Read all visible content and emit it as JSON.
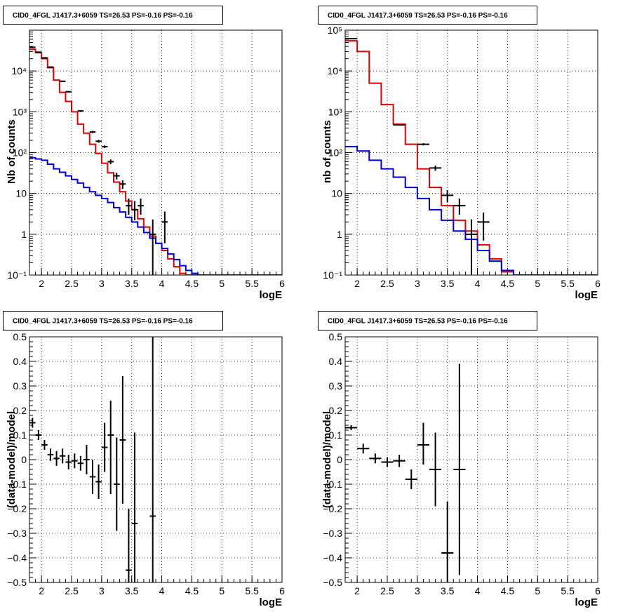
{
  "colors": {
    "data": "#000000",
    "total_model": "#e00000",
    "source_model": "#0000dd",
    "frame": "#000000",
    "grid": "#000000"
  },
  "chart_data": [
    {
      "type": "line",
      "title": "CID0_4FGL J1417.3+6059 TS=26.53 PS=-0.16 PS=-0.16",
      "xlabel": "logE",
      "ylabel": "Nb of counts",
      "xlim": [
        1.8,
        6
      ],
      "ylim": [
        0.1,
        100000
      ],
      "yscale": "log",
      "grid": true,
      "x_ticks": [
        "2",
        "2.5",
        "3",
        "3.5",
        "4",
        "4.5",
        "5",
        "5.5",
        "6"
      ],
      "y_ticks": [
        "10⁻¹",
        "1",
        "10",
        "10²",
        "10³",
        "10⁴"
      ],
      "bin_edges": [
        1.8,
        1.9,
        2.0,
        2.1,
        2.2,
        2.3,
        2.4,
        2.5,
        2.6,
        2.7,
        2.8,
        2.9,
        3.0,
        3.1,
        3.2,
        3.3,
        3.4,
        3.5,
        3.6,
        3.7,
        3.8,
        3.9,
        4.0,
        4.1,
        4.2,
        4.3,
        4.4,
        4.5,
        4.6,
        4.7,
        4.8,
        4.9,
        5.0,
        5.1,
        5.2,
        5.3,
        5.4,
        5.5,
        5.6,
        5.7,
        5.8,
        5.9,
        6.0
      ],
      "series": [
        {
          "role": "total_model",
          "style": "step",
          "values": [
            34000,
            28000,
            20000,
            12000,
            6000,
            3000,
            1800,
            1000,
            500,
            300,
            160,
            95,
            55,
            32,
            19,
            11,
            6.5,
            4,
            2.4,
            1.5,
            0.9,
            0.6,
            0.4,
            0.25,
            0.16,
            0.11,
            0.1,
            0.1,
            0.1,
            0.1,
            0.1,
            0.1,
            0.1,
            0.1,
            0.1,
            0.1,
            0.1,
            0.1,
            0.1,
            0.1,
            0.1,
            0.1
          ]
        },
        {
          "role": "source_model",
          "style": "step",
          "values": [
            75,
            70,
            65,
            52,
            40,
            33,
            27,
            22,
            18,
            14,
            11,
            9,
            7.5,
            6,
            4.5,
            3.5,
            2.6,
            2,
            1.5,
            1.1,
            0.8,
            0.6,
            0.45,
            0.33,
            0.24,
            0.17,
            0.13,
            0.11,
            0.1,
            0.1,
            0.1,
            0.1,
            0.1,
            0.1,
            0.1,
            0.1,
            0.1,
            0.1,
            0.1,
            0.1,
            0.1,
            0.1
          ]
        },
        {
          "role": "data",
          "style": "errorbar",
          "points": [
            {
              "x": 1.85,
              "y": 38000,
              "lo": 37000,
              "hi": 39000
            },
            {
              "x": 1.95,
              "y": 29000,
              "lo": 28500,
              "hi": 29500
            },
            {
              "x": 2.05,
              "y": 21000,
              "lo": 20600,
              "hi": 21400
            },
            {
              "x": 2.15,
              "y": 12500,
              "lo": 12200,
              "hi": 12800
            },
            {
              "x": 2.35,
              "y": 5600,
              "lo": 5400,
              "hi": 5800
            },
            {
              "x": 2.45,
              "y": 3100,
              "lo": 3000,
              "hi": 3200
            },
            {
              "x": 2.65,
              "y": 1050,
              "lo": 1000,
              "hi": 1100
            },
            {
              "x": 2.85,
              "y": 320,
              "lo": 300,
              "hi": 340
            },
            {
              "x": 2.95,
              "y": 190,
              "lo": 175,
              "hi": 205
            },
            {
              "x": 3.05,
              "y": 140,
              "lo": 130,
              "hi": 150
            },
            {
              "x": 3.15,
              "y": 60,
              "lo": 52,
              "hi": 68
            },
            {
              "x": 3.25,
              "y": 27,
              "lo": 22,
              "hi": 32
            },
            {
              "x": 3.35,
              "y": 17,
              "lo": 13,
              "hi": 21
            },
            {
              "x": 3.45,
              "y": 5,
              "lo": 3,
              "hi": 7.5
            },
            {
              "x": 3.55,
              "y": 4,
              "lo": 2.2,
              "hi": 6.5
            },
            {
              "x": 3.65,
              "y": 5,
              "lo": 3,
              "hi": 7.5
            },
            {
              "x": 3.85,
              "y": 1,
              "lo": 0.1,
              "hi": 2.3
            },
            {
              "x": 4.05,
              "y": 2,
              "lo": 0.6,
              "hi": 3.6
            }
          ]
        }
      ]
    },
    {
      "type": "line",
      "title": "CID0_4FGL J1417.3+6059 TS=26.53 PS=-0.16 PS=-0.16",
      "xlabel": "logE",
      "ylabel": "nb of counts",
      "xlim": [
        1.8,
        6
      ],
      "ylim": [
        0.1,
        100000
      ],
      "yscale": "log",
      "grid": true,
      "x_ticks": [
        "2",
        "2.5",
        "3",
        "3.5",
        "4",
        "4.5",
        "5",
        "5.5",
        "6"
      ],
      "y_ticks": [
        "10⁻¹",
        "1",
        "10",
        "10²",
        "10³",
        "10⁴",
        "10⁵"
      ],
      "bin_edges": [
        1.8,
        2.0,
        2.2,
        2.4,
        2.6,
        2.8,
        3.0,
        3.2,
        3.4,
        3.6,
        3.8,
        4.0,
        4.2,
        4.4,
        4.6,
        4.8,
        5.0,
        5.2,
        5.4,
        5.6,
        5.8,
        6.0
      ],
      "series": [
        {
          "role": "total_model",
          "style": "step",
          "values": [
            55000,
            30000,
            5000,
            1500,
            500,
            160,
            40,
            14,
            5,
            2.2,
            1.2,
            0.55,
            0.25,
            0.12,
            0.1,
            0.1,
            0.1,
            0.1,
            0.1,
            0.1,
            0.1
          ]
        },
        {
          "role": "source_model",
          "style": "step",
          "values": [
            140,
            110,
            65,
            40,
            25,
            14,
            7.5,
            4,
            2.2,
            1.2,
            0.75,
            0.4,
            0.22,
            0.13,
            0.1,
            0.1,
            0.1,
            0.1,
            0.1,
            0.1,
            0.1
          ]
        },
        {
          "role": "data",
          "style": "errorbar",
          "points": [
            {
              "x": 1.9,
              "y": 62000,
              "lo": 61000,
              "hi": 63000
            },
            {
              "x": 2.7,
              "y": 480,
              "lo": 460,
              "hi": 500
            },
            {
              "x": 3.1,
              "y": 160,
              "lo": 150,
              "hi": 170
            },
            {
              "x": 3.3,
              "y": 42,
              "lo": 36,
              "hi": 48
            },
            {
              "x": 3.5,
              "y": 9,
              "lo": 6,
              "hi": 12
            },
            {
              "x": 3.7,
              "y": 5,
              "lo": 3,
              "hi": 7.5
            },
            {
              "x": 3.9,
              "y": 1,
              "lo": 0.1,
              "hi": 2.3
            },
            {
              "x": 4.1,
              "y": 2,
              "lo": 0.7,
              "hi": 3.4
            }
          ]
        }
      ]
    },
    {
      "type": "scatter",
      "title": "CID0_4FGL J1417.3+6059 TS=26.53 PS=-0.16 PS=-0.16",
      "xlabel": "logE",
      "ylabel": "(data-model)/model",
      "xlim": [
        1.8,
        6
      ],
      "ylim": [
        -0.5,
        0.5
      ],
      "grid": true,
      "x_ticks": [
        "2",
        "2.5",
        "3",
        "3.5",
        "4",
        "4.5",
        "5",
        "5.5",
        "6"
      ],
      "y_ticks": [
        "−0.5",
        "−0.4",
        "−0.3",
        "−0.2",
        "−0.1",
        "0",
        "0.1",
        "0.2",
        "0.3",
        "0.4",
        "0.5"
      ],
      "xerr": 0.05,
      "points": [
        {
          "x": 1.85,
          "y": 0.15,
          "lo": 0.13,
          "hi": 0.17
        },
        {
          "x": 1.95,
          "y": 0.1,
          "lo": 0.08,
          "hi": 0.12
        },
        {
          "x": 2.05,
          "y": 0.06,
          "lo": 0.04,
          "hi": 0.08
        },
        {
          "x": 2.15,
          "y": 0.02,
          "lo": -0.005,
          "hi": 0.045
        },
        {
          "x": 2.25,
          "y": 0.005,
          "lo": -0.025,
          "hi": 0.035
        },
        {
          "x": 2.35,
          "y": 0.015,
          "lo": -0.015,
          "hi": 0.045
        },
        {
          "x": 2.45,
          "y": -0.01,
          "lo": -0.04,
          "hi": 0.02
        },
        {
          "x": 2.55,
          "y": -0.005,
          "lo": -0.035,
          "hi": 0.025
        },
        {
          "x": 2.65,
          "y": -0.015,
          "lo": -0.045,
          "hi": 0.015
        },
        {
          "x": 2.75,
          "y": 0.0,
          "lo": -0.06,
          "hi": 0.06
        },
        {
          "x": 2.85,
          "y": -0.07,
          "lo": -0.14,
          "hi": 0.0
        },
        {
          "x": 2.95,
          "y": -0.09,
          "lo": -0.16,
          "hi": -0.02
        },
        {
          "x": 3.05,
          "y": 0.05,
          "lo": -0.05,
          "hi": 0.15
        },
        {
          "x": 3.15,
          "y": 0.1,
          "lo": -0.14,
          "hi": 0.24
        },
        {
          "x": 3.25,
          "y": -0.1,
          "lo": -0.29,
          "hi": 0.09
        },
        {
          "x": 3.35,
          "y": 0.08,
          "lo": -0.18,
          "hi": 0.34
        },
        {
          "x": 3.45,
          "y": -0.45,
          "lo": -0.5,
          "hi": -0.2
        },
        {
          "x": 3.55,
          "y": -0.26,
          "lo": -0.5,
          "hi": 0.11
        },
        {
          "x": 3.85,
          "y": -0.23,
          "lo": -0.5,
          "hi": 0.5
        }
      ]
    },
    {
      "type": "scatter",
      "title": "CID0_4FGL J1417.3+6059 TS=26.53 PS=-0.16 PS=-0.16",
      "xlabel": "logE",
      "ylabel": "(data-model)/model",
      "xlim": [
        1.8,
        6
      ],
      "ylim": [
        -0.5,
        0.5
      ],
      "grid": true,
      "x_ticks": [
        "2",
        "2.5",
        "3",
        "3.5",
        "4",
        "4.5",
        "5",
        "5.5",
        "6"
      ],
      "y_ticks": [
        "−0.5",
        "−0.4",
        "−0.3",
        "−0.2",
        "−0.1",
        "0",
        "0.1",
        "0.2",
        "0.3",
        "0.4",
        "0.5"
      ],
      "xerr": 0.1,
      "points": [
        {
          "x": 1.9,
          "y": 0.13,
          "lo": 0.12,
          "hi": 0.14
        },
        {
          "x": 2.1,
          "y": 0.045,
          "lo": 0.025,
          "hi": 0.065
        },
        {
          "x": 2.3,
          "y": 0.005,
          "lo": -0.015,
          "hi": 0.025
        },
        {
          "x": 2.5,
          "y": -0.01,
          "lo": -0.03,
          "hi": 0.01
        },
        {
          "x": 2.7,
          "y": -0.005,
          "lo": -0.03,
          "hi": 0.02
        },
        {
          "x": 2.9,
          "y": -0.08,
          "lo": -0.12,
          "hi": -0.04
        },
        {
          "x": 3.1,
          "y": 0.06,
          "lo": -0.02,
          "hi": 0.15
        },
        {
          "x": 3.3,
          "y": -0.04,
          "lo": -0.19,
          "hi": 0.11
        },
        {
          "x": 3.5,
          "y": -0.38,
          "lo": -0.5,
          "hi": -0.17
        },
        {
          "x": 3.7,
          "y": -0.04,
          "lo": -0.47,
          "hi": 0.39
        }
      ]
    }
  ]
}
